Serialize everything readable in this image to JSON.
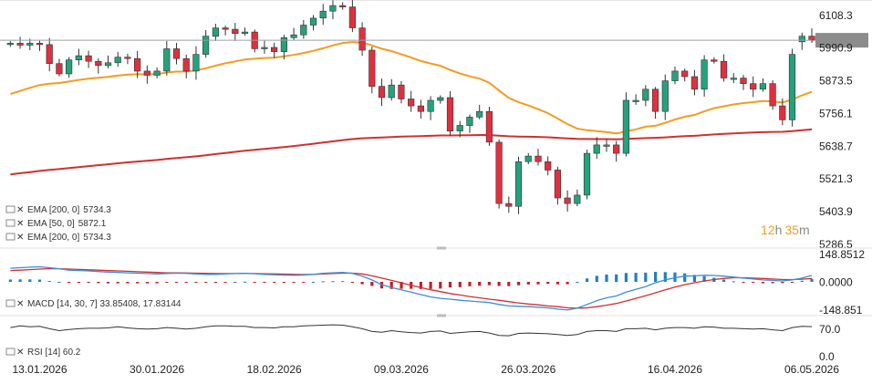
{
  "chart_data": [
    {
      "type": "candlestick",
      "x": [
        "2026-01-08",
        "2026-01-09",
        "2026-01-12",
        "2026-01-13",
        "2026-01-14",
        "2026-01-15",
        "2026-01-16",
        "2026-01-20",
        "2026-01-21",
        "2026-01-22",
        "2026-01-23",
        "2026-01-26",
        "2026-01-27",
        "2026-01-28",
        "2026-01-29",
        "2026-01-30",
        "2026-02-02",
        "2026-02-03",
        "2026-02-04",
        "2026-02-05",
        "2026-02-06",
        "2026-02-09",
        "2026-02-10",
        "2026-02-11",
        "2026-02-12",
        "2026-02-13",
        "2026-02-17",
        "2026-02-18",
        "2026-02-19",
        "2026-02-20",
        "2026-02-23",
        "2026-02-24",
        "2026-02-25",
        "2026-02-26",
        "2026-02-27",
        "2026-03-02",
        "2026-03-03",
        "2026-03-04",
        "2026-03-05",
        "2026-03-06",
        "2026-03-09",
        "2026-03-10",
        "2026-03-11",
        "2026-03-12",
        "2026-03-13",
        "2026-03-16",
        "2026-03-17",
        "2026-03-18",
        "2026-03-19",
        "2026-03-20",
        "2026-03-23",
        "2026-03-24",
        "2026-03-25",
        "2026-03-26",
        "2026-03-27",
        "2026-03-30",
        "2026-03-31",
        "2026-04-01",
        "2026-04-02",
        "2026-04-03",
        "2026-04-06",
        "2026-04-07",
        "2026-04-08",
        "2026-04-09",
        "2026-04-10",
        "2026-04-13",
        "2026-04-14",
        "2026-04-15",
        "2026-04-16",
        "2026-04-17",
        "2026-04-20",
        "2026-04-21",
        "2026-04-22",
        "2026-04-23",
        "2026-04-24",
        "2026-04-27",
        "2026-04-28",
        "2026-04-29",
        "2026-04-30",
        "2026-05-01",
        "2026-05-04",
        "2026-05-05",
        "2026-05-06"
      ],
      "open": [
        6000,
        6005,
        5998,
        6005,
        6000,
        5932,
        5895,
        5945,
        5960,
        5940,
        5925,
        5935,
        5955,
        5950,
        5905,
        5890,
        5905,
        5985,
        5950,
        5905,
        5965,
        6030,
        6060,
        6055,
        6040,
        6045,
        5985,
        5990,
        5975,
        6025,
        6035,
        6070,
        6095,
        6120,
        6140,
        6135,
        6060,
        5980,
        5850,
        5810,
        5855,
        5805,
        5780,
        5760,
        5800,
        5810,
        5690,
        5710,
        5740,
        5760,
        5650,
        5430,
        5420,
        5580,
        5600,
        5580,
        5550,
        5450,
        5430,
        5460,
        5610,
        5640,
        5640,
        5610,
        5800,
        5800,
        5840,
        5760,
        5870,
        5905,
        5885,
        5840,
        5945,
        5940,
        5880,
        5880,
        5860,
        5840,
        5860,
        5780,
        5730,
        6010,
        6030
      ],
      "close": [
        6005,
        5998,
        6005,
        6000,
        5932,
        5895,
        5945,
        5960,
        5940,
        5925,
        5935,
        5955,
        5950,
        5905,
        5890,
        5905,
        5985,
        5950,
        5905,
        5965,
        6030,
        6060,
        6055,
        6040,
        6045,
        5985,
        5990,
        5975,
        6025,
        6035,
        6070,
        6095,
        6120,
        6140,
        6135,
        6060,
        5980,
        5850,
        5810,
        5855,
        5805,
        5780,
        5760,
        5800,
        5810,
        5690,
        5710,
        5740,
        5760,
        5650,
        5430,
        5420,
        5580,
        5600,
        5580,
        5550,
        5450,
        5430,
        5460,
        5610,
        5640,
        5640,
        5610,
        5800,
        5800,
        5840,
        5760,
        5870,
        5905,
        5885,
        5840,
        5945,
        5940,
        5880,
        5880,
        5860,
        5840,
        5860,
        5780,
        5730,
        5965,
        6030,
        6015.6
      ],
      "y_ticks": [
        6108.3,
        5990.9,
        5873.5,
        5756.1,
        5638.7,
        5521.3,
        5403.9,
        5286.5
      ],
      "ylim": [
        5270,
        6160
      ],
      "last_price": "6015.6",
      "x_tick_labels": [
        "13.01.2026",
        "30.01.2026",
        "18.02.2026",
        "09.03.2026",
        "26.03.2026",
        "16.04.2026",
        "06.05.2026"
      ],
      "overlays": [
        {
          "name": "EMA [200, 0]",
          "value": "5734.3",
          "color": "#d32f2f"
        },
        {
          "name": "EMA [50, 0]",
          "value": "5872.1",
          "color": "#f39c1f"
        },
        {
          "name": "EMA [200, 0]",
          "value": "5734.3",
          "color": "#d32f2f"
        }
      ],
      "countdown": {
        "hours": "12",
        "h_unit": "h",
        "minutes": "35",
        "m_unit": "m"
      }
    },
    {
      "type": "macd",
      "label": "MACD [14, 30, 7] 33.85408, 17.83144",
      "y_ticks": [
        "148.8512",
        "0.0000",
        "-148.851"
      ],
      "ylim": [
        -160,
        160
      ],
      "macd_line": [
        72,
        75,
        78,
        80,
        75,
        70,
        62,
        60,
        58,
        55,
        52,
        50,
        48,
        46,
        44,
        42,
        44,
        46,
        45,
        42,
        40,
        40,
        42,
        44,
        45,
        43,
        40,
        38,
        36,
        35,
        36,
        40,
        45,
        48,
        50,
        45,
        30,
        10,
        -15,
        -30,
        -42,
        -55,
        -68,
        -80,
        -88,
        -92,
        -98,
        -102,
        -106,
        -110,
        -120,
        -128,
        -130,
        -132,
        -135,
        -138,
        -145,
        -150,
        -140,
        -120,
        -100,
        -85,
        -75,
        -55,
        -40,
        -25,
        -5,
        10,
        22,
        30,
        32,
        35,
        34,
        30,
        25,
        20,
        15,
        10,
        8,
        5,
        10,
        20,
        34
      ],
      "signal_line": [
        60,
        62,
        65,
        68,
        70,
        70,
        68,
        66,
        64,
        62,
        60,
        58,
        56,
        54,
        52,
        50,
        48,
        48,
        47,
        46,
        45,
        44,
        44,
        44,
        44,
        44,
        43,
        42,
        41,
        40,
        39,
        40,
        42,
        44,
        46,
        46,
        42,
        32,
        20,
        8,
        -5,
        -18,
        -30,
        -42,
        -52,
        -62,
        -70,
        -78,
        -85,
        -92,
        -98,
        -105,
        -112,
        -118,
        -122,
        -128,
        -132,
        -138,
        -140,
        -138,
        -132,
        -124,
        -115,
        -102,
        -88,
        -74,
        -58,
        -42,
        -28,
        -15,
        -5,
        5,
        12,
        18,
        22,
        22,
        20,
        18,
        15,
        12,
        12,
        14,
        17.8
      ],
      "histogram": [
        12,
        13,
        13,
        12,
        5,
        0,
        -6,
        -6,
        -6,
        -7,
        -8,
        -8,
        -8,
        -8,
        -8,
        -8,
        -4,
        -2,
        -2,
        -4,
        -5,
        -4,
        -2,
        0,
        1,
        -1,
        -3,
        -4,
        -5,
        -5,
        -3,
        0,
        3,
        4,
        4,
        -1,
        -12,
        -22,
        -35,
        -38,
        -37,
        -37,
        -38,
        -38,
        -36,
        -30,
        -28,
        -24,
        -21,
        -18,
        -22,
        -23,
        -18,
        -14,
        -13,
        -10,
        -13,
        -12,
        0,
        18,
        32,
        39,
        40,
        47,
        48,
        49,
        53,
        52,
        50,
        45,
        37,
        30,
        22,
        12,
        3,
        -2,
        -5,
        -8,
        -7,
        -7,
        -2,
        6,
        16
      ]
    },
    {
      "type": "rsi",
      "label": "RSI [14] 60.2",
      "y_ticks": [
        "70.0",
        "0.0"
      ],
      "ylim": [
        0,
        100
      ],
      "values": [
        58,
        62,
        60,
        61,
        55,
        50,
        53,
        55,
        56,
        56,
        57,
        60,
        57,
        55,
        54,
        55,
        58,
        56,
        54,
        56,
        60,
        62,
        62,
        61,
        61,
        58,
        58,
        57,
        60,
        60,
        62,
        63,
        64,
        65,
        64,
        60,
        55,
        48,
        46,
        50,
        47,
        45,
        44,
        48,
        49,
        43,
        45,
        47,
        48,
        44,
        38,
        37,
        43,
        44,
        43,
        42,
        40,
        38,
        40,
        48,
        50,
        50,
        48,
        55,
        55,
        56,
        52,
        56,
        58,
        58,
        56,
        60,
        59,
        56,
        56,
        55,
        54,
        55,
        52,
        50,
        58,
        61,
        60.2
      ]
    }
  ]
}
